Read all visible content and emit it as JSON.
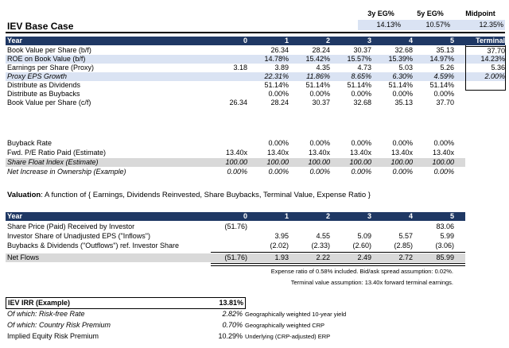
{
  "midpoint_header": {
    "labels": [
      "3y EG%",
      "5y EG%",
      "Midpoint"
    ],
    "values": [
      "14.13%",
      "10.57%",
      "12.35%"
    ]
  },
  "title": "IEV Base Case",
  "table1": {
    "header": {
      "label": "Year",
      "cols": [
        "0",
        "1",
        "2",
        "3",
        "4",
        "5"
      ],
      "terminal": "Terminal"
    },
    "rows": [
      {
        "label": "Book Value per Share (b/f)",
        "vals": [
          "",
          "26.34",
          "28.24",
          "30.37",
          "32.68",
          "35.13"
        ],
        "terminal": "37.70",
        "style": ""
      },
      {
        "label": "ROE on Book Value (b/f)",
        "vals": [
          "",
          "14.78%",
          "15.42%",
          "15.57%",
          "15.39%",
          "14.97%"
        ],
        "terminal": "14.23%",
        "style": "blue"
      },
      {
        "label": "Earnings per Share (Proxy)",
        "vals": [
          "3.18",
          "3.89",
          "4.35",
          "4.73",
          "5.03",
          "5.26"
        ],
        "terminal": "5.36",
        "style": ""
      },
      {
        "label": "Proxy EPS Growth",
        "vals": [
          "",
          "22.31%",
          "11.86%",
          "8.65%",
          "6.30%",
          "4.59%"
        ],
        "terminal": "2.00%",
        "style": "blue it"
      },
      {
        "label": "Distribute as Dividends",
        "vals": [
          "",
          "51.14%",
          "51.14%",
          "51.14%",
          "51.14%",
          "51.14%"
        ],
        "terminal": "",
        "style": ""
      },
      {
        "label": "Distribute as Buybacks",
        "vals": [
          "",
          "0.00%",
          "0.00%",
          "0.00%",
          "0.00%",
          "0.00%"
        ],
        "terminal": "",
        "style": ""
      },
      {
        "label": "Book Value per Share (c/f)",
        "vals": [
          "26.34",
          "28.24",
          "30.37",
          "32.68",
          "35.13",
          "37.70"
        ],
        "terminal": "",
        "style": ""
      }
    ],
    "rows2": [
      {
        "label": "Buyback Rate",
        "vals": [
          "",
          "0.00%",
          "0.00%",
          "0.00%",
          "0.00%",
          "0.00%"
        ],
        "style": ""
      },
      {
        "label": "Fwd. P/E Ratio Paid (Estimate)",
        "vals": [
          "13.40x",
          "13.40x",
          "13.40x",
          "13.40x",
          "13.40x",
          "13.40x"
        ],
        "style": ""
      },
      {
        "label": "Share Float Index (Estimate)",
        "vals": [
          "100.00",
          "100.00",
          "100.00",
          "100.00",
          "100.00",
          "100.00"
        ],
        "style": "gray it"
      },
      {
        "label": "Net Increase in Ownership (Example)",
        "vals": [
          "0.00%",
          "0.00%",
          "0.00%",
          "0.00%",
          "0.00%",
          "0.00%"
        ],
        "style": "it"
      }
    ]
  },
  "valuation_note": {
    "bold": "Valuation",
    "rest": ": A function of { Earnings, Dividends Reinvested, Share Buybacks, Terminal Value, Expense Ratio }"
  },
  "table2": {
    "header": {
      "label": "Year",
      "cols": [
        "0",
        "1",
        "2",
        "3",
        "4",
        "5"
      ]
    },
    "rows": [
      {
        "label": "Share Price (Paid) Received by Investor",
        "vals": [
          "(51.76)",
          "",
          "",
          "",
          "",
          "83.06"
        ]
      },
      {
        "label": "Investor Share of Unadjusted EPS (\"Inflows\")",
        "vals": [
          "",
          "3.95",
          "4.55",
          "5.09",
          "5.57",
          "5.99"
        ]
      },
      {
        "label": "Buybacks & Dividends (\"Outflows\") ref. Investor Share",
        "vals": [
          "",
          "(2.02)",
          "(2.33)",
          "(2.60)",
          "(2.85)",
          "(3.06)"
        ]
      }
    ],
    "net": {
      "label": "Net Flows",
      "vals": [
        "(51.76)",
        "1.93",
        "2.22",
        "2.49",
        "2.72",
        "85.99"
      ]
    }
  },
  "notes": [
    "Expense ratio of 0.58% included. Bid/ask spread assumption: 0.02%.",
    "Terminal value assumption: 13.40x forward terminal earnings."
  ],
  "irr": {
    "label": "IEV IRR (Example)",
    "value": "13.81%",
    "rows": [
      {
        "label": "Of which: Risk-free Rate",
        "value": "2.82%",
        "note": "Geographically weighted 10-year yield",
        "italic": true
      },
      {
        "label": "Of which: Country Risk Premium",
        "value": "0.70%",
        "note": "Geographically weighted CRP",
        "italic": true
      },
      {
        "label": "Implied Equity Risk Premium",
        "value": "10.29%",
        "note": "Underlying (CRP-adjusted) ERP",
        "italic": false
      }
    ]
  }
}
